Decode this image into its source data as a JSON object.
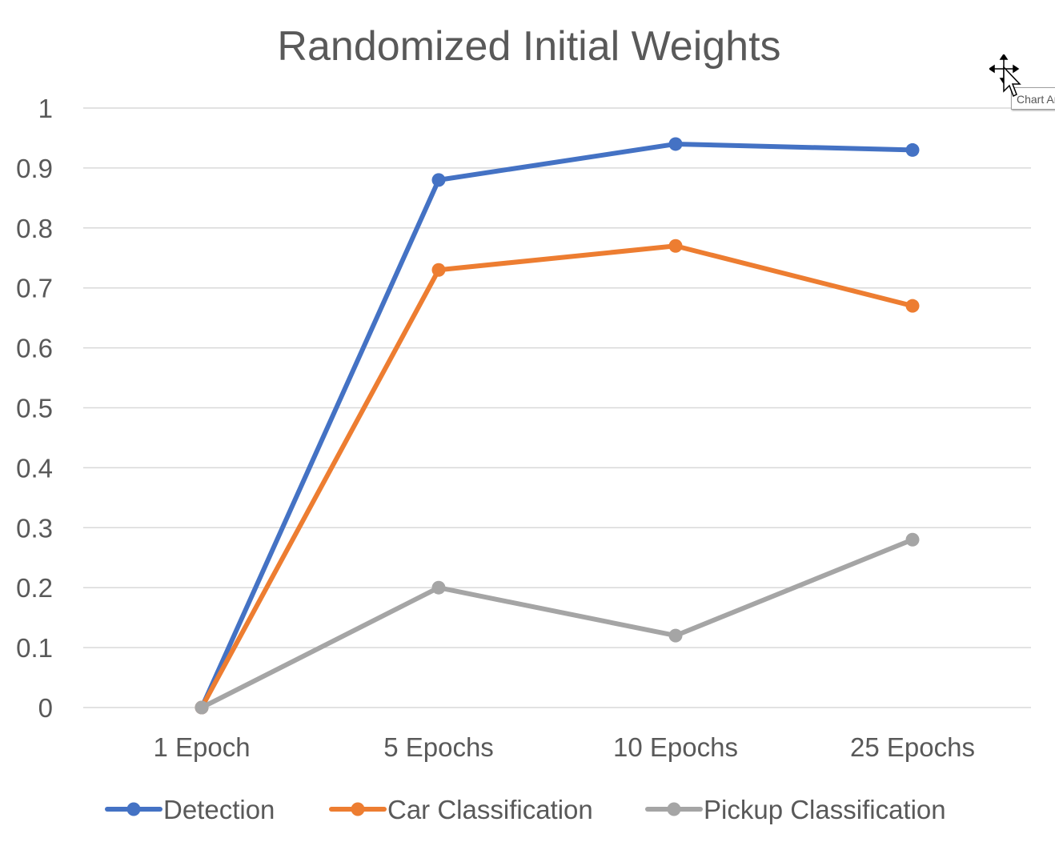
{
  "chart_data": {
    "type": "line",
    "title": "Randomized Initial Weights",
    "categories": [
      "1 Epoch",
      "5 Epochs",
      "10 Epochs",
      "25 Epochs"
    ],
    "series": [
      {
        "name": "Detection",
        "values": [
          0,
          0.88,
          0.94,
          0.93
        ],
        "color": "#4472C4"
      },
      {
        "name": "Car Classification",
        "values": [
          0,
          0.73,
          0.77,
          0.67
        ],
        "color": "#ED7D31"
      },
      {
        "name": "Pickup Classification",
        "values": [
          0,
          0.2,
          0.12,
          0.28
        ],
        "color": "#A5A5A5"
      }
    ],
    "yticks": [
      "0",
      "0.1",
      "0.2",
      "0.3",
      "0.4",
      "0.5",
      "0.6",
      "0.7",
      "0.8",
      "0.9",
      "1"
    ],
    "ylim": [
      0,
      1
    ],
    "grid": true,
    "legend": "bottom"
  },
  "tooltip": {
    "text": "Chart Area"
  },
  "cursor": {
    "icon": "move-cursor-icon"
  }
}
